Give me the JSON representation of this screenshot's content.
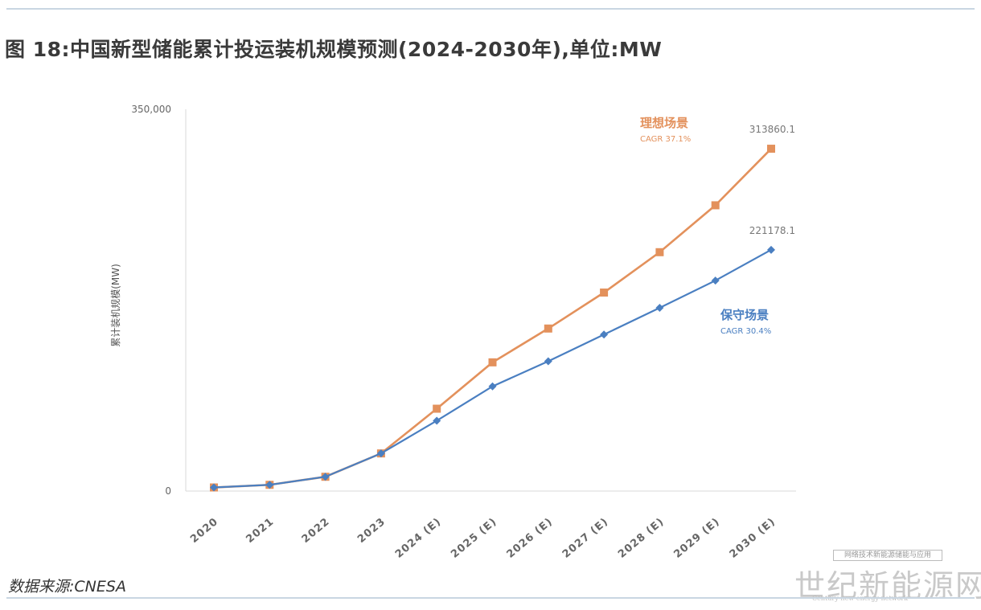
{
  "figure": {
    "title": "图 18:中国新型储能累计投运装机规模预测(2024-2030年),单位:MW",
    "source": "数据来源:CNESA"
  },
  "watermark": {
    "small_text": "网络技术新能源储能与应用",
    "big_text": "世纪新能源网",
    "english_text": "Century-new-energy-network"
  },
  "colors": {
    "ideal": "#e3915c",
    "conservative": "#4a7fc1",
    "axis": "#d9d9d9"
  },
  "chart_data": {
    "type": "line",
    "ylabel": "累计装机规模(MW)",
    "xlabel": "",
    "ylim": [
      0,
      350000
    ],
    "y_tick_labels": [
      "0",
      "350,000"
    ],
    "grid": false,
    "categories": [
      "2020",
      "2021",
      "2022",
      "2023",
      "2024 (E)",
      "2025 (E)",
      "2026 (E)",
      "2027 (E)",
      "2028 (E)",
      "2029 (E)",
      "2030 (E)"
    ],
    "series": [
      {
        "name": "理想场景",
        "cagr": "CAGR 37.1%",
        "marker": "square",
        "color": "#e3915c",
        "values": [
          3300,
          5700,
          13100,
          34500,
          75500,
          118000,
          149000,
          182000,
          219000,
          262000,
          313860.1
        ],
        "end_label": "313860.1"
      },
      {
        "name": "保守场景",
        "cagr": "CAGR 30.4%",
        "marker": "diamond",
        "color": "#4a7fc1",
        "values": [
          3300,
          5700,
          13100,
          34500,
          64500,
          96000,
          119000,
          143500,
          168000,
          193000,
          221178.1
        ],
        "end_label": "221178.1"
      }
    ]
  }
}
